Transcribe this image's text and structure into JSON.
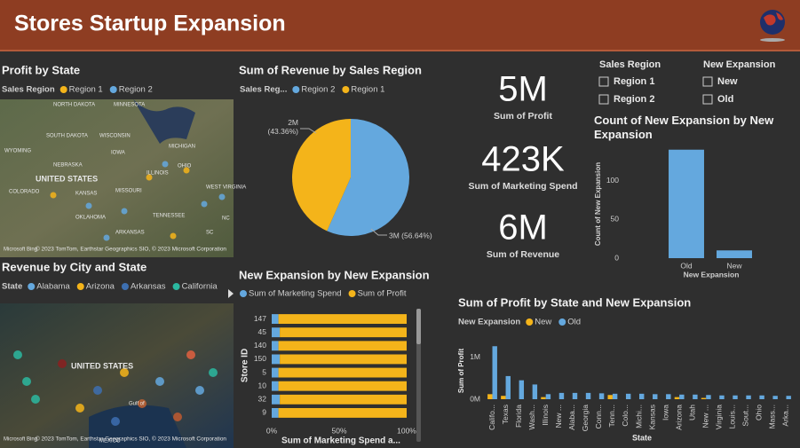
{
  "header": {
    "title": "Stores Startup Expansion"
  },
  "maps": [
    {
      "title": "Profit by State",
      "legend_title": "Sales Region",
      "legend": [
        {
          "name": "Region 1",
          "color": "#f4b41a"
        },
        {
          "name": "Region 2",
          "color": "#64a8de"
        }
      ],
      "labels": [
        "NORTH DAKOTA",
        "MINNESOTA",
        "SOUTH DAKOTA",
        "WISCONSIN",
        "MICHIGAN",
        "WYOMING",
        "IOWA",
        "NEBRASKA",
        "UNITED STATES",
        "ILLINOIS",
        "OHIO",
        "COLORADO",
        "KANSAS",
        "MISSOURI",
        "WEST VIRGINIA",
        "OKLAHOMA",
        "TENNESSEE",
        "NC",
        "ARKANSAS",
        "SC"
      ],
      "brand": "Microsoft Bing",
      "credits": "© 2023 TomTom, Earthstar Geographics SIO, © 2023 Microsoft Corporation"
    },
    {
      "title": "Revenue by City and State",
      "legend_title": "State",
      "legend": [
        {
          "name": "Alabama",
          "color": "#64a8de"
        },
        {
          "name": "Arizona",
          "color": "#f4b41a"
        },
        {
          "name": "Arkansas",
          "color": "#3d6fb0"
        },
        {
          "name": "California",
          "color": "#2bb8a0"
        }
      ],
      "labels": [
        "UNITED STATES",
        "Gulf of",
        "MEXICO"
      ],
      "brand": "Microsoft Bing",
      "credits": "© 2023 TomTom, Earthstar Geographics SIO, © 2023 Microsoft Corporation"
    }
  ],
  "cards": [
    {
      "value": "5M",
      "label": "Sum of Profit"
    },
    {
      "value": "423K",
      "label": "Sum of Marketing Spend"
    },
    {
      "value": "6M",
      "label": "Sum of Revenue"
    }
  ],
  "slicers": [
    {
      "title": "Sales Region",
      "items": [
        "Region 1",
        "Region 2"
      ]
    },
    {
      "title": "New Expansion",
      "items": [
        "New",
        "Old"
      ]
    }
  ],
  "chart_data": [
    {
      "type": "pie",
      "title": "Sum of Revenue by Sales Region",
      "legend_title": "Sales Reg...",
      "categories": [
        "Region 2",
        "Region 1"
      ],
      "values": [
        56.64,
        43.36
      ],
      "value_labels": [
        "3M (56.64%)",
        "2M (43.36%)"
      ],
      "colors": [
        "#64a8de",
        "#f4b41a"
      ]
    },
    {
      "type": "bar",
      "title": "Count of New Expansion by New Expansion",
      "x_label": "New Expansion",
      "y_label": "Count of New Expansion",
      "categories": [
        "Old",
        "New"
      ],
      "values": [
        140,
        10
      ],
      "color": "#64a8de",
      "ylim": [
        0,
        150
      ],
      "yticks": [
        0,
        50,
        100
      ]
    },
    {
      "type": "hbar100",
      "title": "New Expansion by New Expansion",
      "x_label": "Sum of Marketing Spend a...",
      "y_label": "Store ID",
      "categories": [
        "147",
        "45",
        "140",
        "150",
        "5",
        "10",
        "32",
        "9"
      ],
      "series": [
        {
          "name": "Sum of Marketing Spend",
          "color": "#64a8de",
          "values": [
            5,
            6,
            5,
            6,
            5,
            5,
            6,
            5
          ]
        },
        {
          "name": "Sum of Profit",
          "color": "#f4b41a",
          "values": [
            95,
            94,
            95,
            94,
            95,
            95,
            94,
            95
          ]
        }
      ],
      "xlim": [
        0,
        100
      ],
      "xticks": [
        {
          "value": 0,
          "label": "0%"
        },
        {
          "value": 50,
          "label": "50%"
        },
        {
          "value": 100,
          "label": "100%"
        }
      ]
    },
    {
      "type": "cluster",
      "title": "Sum of Profit by State and New Expansion",
      "legend_title": "New Expansion",
      "x_label": "State",
      "y_label": "Sum of Profit",
      "categories": [
        "Califo...",
        "Texas",
        "Florida",
        "Wash...",
        "Illinois",
        "New ...",
        "Alaba...",
        "Georgia",
        "Conn...",
        "Tenn...",
        "Colo...",
        "Michi...",
        "Kansas",
        "Iowa",
        "Arizona",
        "Utah",
        "New ...",
        "Virginia",
        "Louis...",
        "Sout...",
        "Ohio",
        "Mass...",
        "Arka..."
      ],
      "series": [
        {
          "name": "New",
          "color": "#f4b41a",
          "values": [
            0.12,
            0.08,
            null,
            null,
            0.05,
            null,
            null,
            null,
            null,
            0.1,
            null,
            null,
            null,
            null,
            0.05,
            null,
            0.03,
            null,
            null,
            null,
            null,
            null,
            null
          ]
        },
        {
          "name": "Old",
          "color": "#64a8de",
          "values": [
            1.26,
            0.55,
            0.45,
            0.35,
            0.12,
            0.15,
            0.15,
            0.15,
            0.14,
            0.13,
            0.13,
            0.13,
            0.12,
            0.12,
            0.11,
            0.11,
            0.1,
            0.09,
            0.09,
            0.09,
            0.09,
            0.08,
            0.08
          ]
        }
      ],
      "ylim": [
        0,
        1.35
      ],
      "yticks": [
        {
          "value": 0,
          "label": "0M"
        },
        {
          "value": 1,
          "label": "1M"
        }
      ]
    }
  ]
}
